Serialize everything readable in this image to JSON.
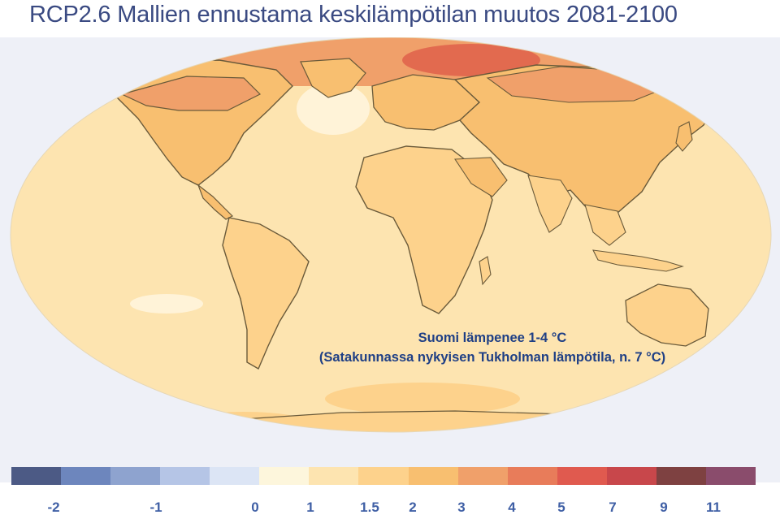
{
  "title": "RCP2.6 Mallien ennustama keskilämpötilan muutos 2081-2100",
  "annotation": {
    "line1": "Suomi lämpenee 1-4 °C",
    "line2": "(Satakunnassa nykyisen Tukholman lämpötila, n. 7 °C)"
  },
  "legend": {
    "colors": [
      "#4c5a85",
      "#6d86bd",
      "#8ea3cf",
      "#b5c5e6",
      "#dce5f5",
      "#fdf6dc",
      "#fde4b0",
      "#fdd28c",
      "#f8bf70",
      "#f0a06a",
      "#e87c5a",
      "#e05a4f",
      "#c8474b",
      "#7e4141",
      "#8a4c6c"
    ],
    "labels": [
      "-2",
      "-1",
      "0",
      "1",
      "1.5",
      "2",
      "3",
      "4",
      "5",
      "7",
      "9",
      "11"
    ]
  },
  "map_colors": {
    "ocean_base": "#fde4b0",
    "land_base": "#fbd08a",
    "warm": "#f8bf70",
    "hot": "#f0a06a",
    "hottest": "#e26a4f",
    "cool": "#fff3d8",
    "border": "#6a5a3a",
    "panel": "#eef0f7"
  }
}
